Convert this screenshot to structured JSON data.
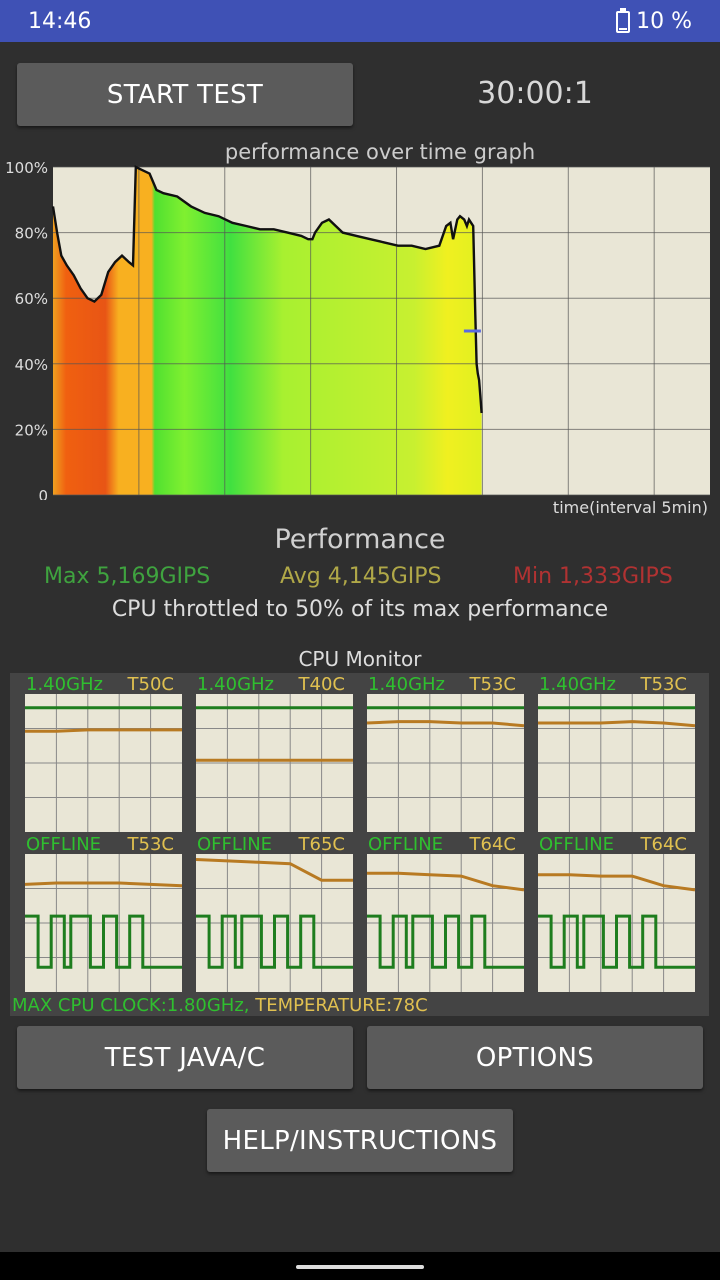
{
  "status_bar": {
    "time": "14:46",
    "battery": "10 %"
  },
  "start_button": "START TEST",
  "timer": "30:00:1",
  "chart_data": {
    "type": "area",
    "title": "performance over time graph",
    "xlabel": "time(interval 5min)",
    "ylabel": "",
    "ylim": [
      0,
      100
    ],
    "y_ticks": [
      "0",
      "20%",
      "40%",
      "60%",
      "80%",
      "100%"
    ],
    "grid": true,
    "x": [
      0,
      0.3,
      0.6,
      1,
      1.5,
      2,
      2.5,
      3,
      3.5,
      4,
      4.5,
      5,
      5.5,
      5.8,
      6,
      6.5,
      7,
      7.5,
      8,
      9,
      10,
      11,
      12,
      13,
      14,
      15,
      16,
      17,
      18,
      18.5,
      18.8,
      19,
      19.5,
      20,
      21,
      22,
      23,
      24,
      25,
      26,
      27,
      28,
      28.5,
      28.8,
      29,
      29.3,
      29.5,
      29.8,
      30
    ],
    "values": [
      88,
      80,
      73,
      70,
      67,
      63,
      60,
      59,
      61,
      68,
      71,
      73,
      71,
      70,
      100,
      99,
      98,
      93,
      92,
      91,
      88,
      86,
      85,
      83,
      82,
      81,
      81,
      80,
      79,
      78,
      78,
      80,
      83,
      84,
      80,
      79,
      78,
      77,
      76,
      76,
      75,
      76,
      82,
      83,
      78,
      84,
      85,
      84,
      82
    ],
    "tail_x": [
      0,
      0.5,
      1,
      1.5,
      2,
      2.3,
      2.6,
      2.9,
      3.2,
      3.5
    ],
    "tail_values": [
      82,
      84,
      83,
      82,
      55,
      40,
      37,
      35,
      30,
      25
    ],
    "marker_value": 50
  },
  "performance": {
    "title": "Performance",
    "max": "Max 5,169GIPS",
    "avg": "Avg 4,145GIPS",
    "min": "Min 1,333GIPS",
    "throttle": "CPU throttled to 50% of its max performance"
  },
  "cpu_monitor": {
    "title": "CPU Monitor",
    "cores": [
      {
        "freq": "1.40GHz",
        "temp": "T50C",
        "freq_level": 0.9,
        "temp_history": [
          0.73,
          0.73,
          0.74,
          0.74,
          0.74,
          0.74
        ]
      },
      {
        "freq": "1.40GHz",
        "temp": "T40C",
        "freq_level": 0.9,
        "temp_history": [
          0.52,
          0.52,
          0.52,
          0.52,
          0.52,
          0.52
        ]
      },
      {
        "freq": "1.40GHz",
        "temp": "T53C",
        "freq_level": 0.9,
        "temp_history": [
          0.79,
          0.8,
          0.8,
          0.79,
          0.79,
          0.77
        ]
      },
      {
        "freq": "1.40GHz",
        "temp": "T53C",
        "freq_level": 0.9,
        "temp_history": [
          0.79,
          0.79,
          0.79,
          0.8,
          0.79,
          0.77
        ]
      },
      {
        "freq": "OFFLINE",
        "temp": "T53C",
        "freq_level": 0,
        "temp_history": [
          0.78,
          0.79,
          0.79,
          0.79,
          0.78,
          0.77
        ]
      },
      {
        "freq": "OFFLINE",
        "temp": "T65C",
        "freq_level": 0,
        "temp_history": [
          0.96,
          0.95,
          0.94,
          0.93,
          0.81,
          0.81
        ]
      },
      {
        "freq": "OFFLINE",
        "temp": "T64C",
        "freq_level": 0,
        "temp_history": [
          0.86,
          0.86,
          0.85,
          0.84,
          0.77,
          0.74
        ]
      },
      {
        "freq": "OFFLINE",
        "temp": "T64C",
        "freq_level": 0,
        "temp_history": [
          0.85,
          0.85,
          0.84,
          0.84,
          0.77,
          0.74
        ]
      }
    ],
    "footer_clock": "MAX CPU CLOCK:1.80GHz,",
    "footer_temp": "TEMPERATURE:78C"
  },
  "buttons": {
    "test_java": "TEST JAVA/C",
    "options": "OPTIONS",
    "help": "HELP/INSTRUCTIONS"
  }
}
